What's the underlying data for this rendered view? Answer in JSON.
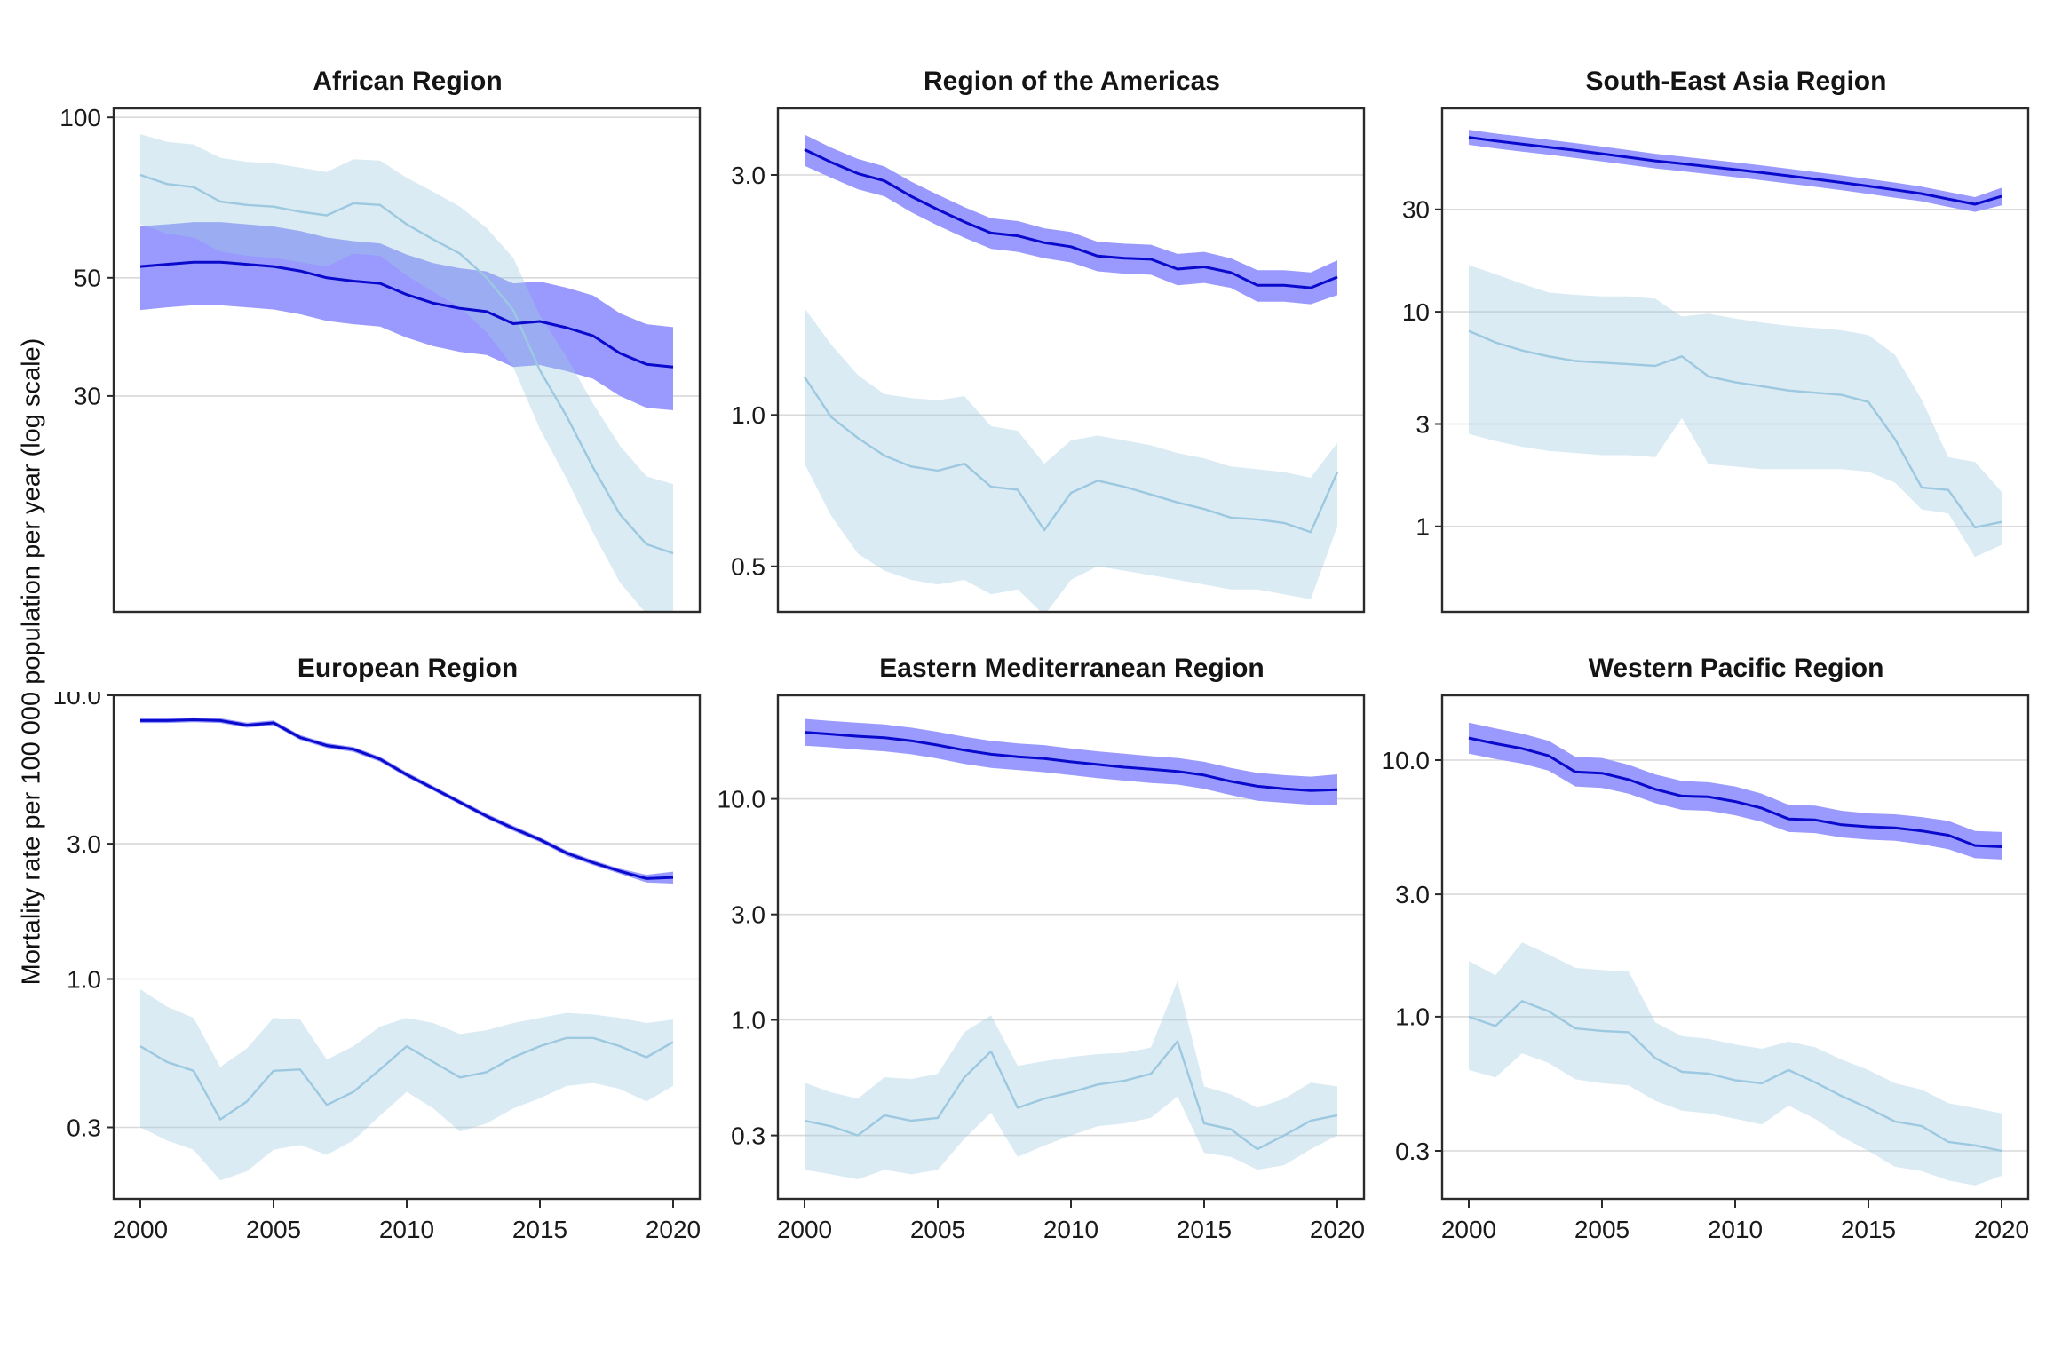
{
  "figure": {
    "y_axis_label": "Mortality rate per 100 000 population per year (log scale)",
    "x_range": {
      "start": 2000,
      "end": 2020
    },
    "x_tick_labels": [
      "2000",
      "2005",
      "2010",
      "2015",
      "2020"
    ],
    "x_tick_years": [
      2000,
      2005,
      2010,
      2015,
      2020
    ]
  },
  "colors": {
    "dark_line": "#0A0ACD",
    "dark_band": "#9999FE",
    "light_line": "#9CC8E0",
    "light_band": "rgba(158,202,225,0.38)",
    "gridline": "#D9D9D9",
    "panel_border": "#2B2B2B",
    "tick_text": "#1A1A1A",
    "title_text": "#141414",
    "background": "#FFFFFF"
  },
  "chart_data": [
    {
      "type": "line",
      "title": "African Region",
      "ylim": [
        11.8,
        104
      ],
      "yticks": [
        {
          "value": 100,
          "label": "100"
        },
        {
          "value": 50,
          "label": "50"
        },
        {
          "value": 30,
          "label": "30"
        }
      ],
      "show_x_axis": false,
      "series": [
        {
          "name": "dark-blue-line",
          "values": [
            52.5,
            53,
            53.5,
            53.5,
            53,
            52.5,
            51.5,
            50,
            49.3,
            48.8,
            46.5,
            44.8,
            43.8,
            43.2,
            41.0,
            41.4,
            40.3,
            38.9,
            36.1,
            34.4,
            34.0
          ],
          "lower": [
            43.5,
            44,
            44.4,
            44.4,
            44,
            43.6,
            42.7,
            41.5,
            40.9,
            40.5,
            38.6,
            37.2,
            36.3,
            35.8,
            34.0,
            34.3,
            33.4,
            32.3,
            30.0,
            28.5,
            28.2
          ],
          "upper": [
            62.5,
            63,
            63.6,
            63.6,
            63,
            62.4,
            61.2,
            59.5,
            58.6,
            58.0,
            55.3,
            53.3,
            52.1,
            51.4,
            48.8,
            49.2,
            47.9,
            46.3,
            42.9,
            40.9,
            40.4
          ]
        },
        {
          "name": "light-blue-line",
          "values": [
            78,
            75,
            74,
            69.5,
            68.5,
            68,
            66.5,
            65.5,
            69,
            68.5,
            63,
            59,
            55.5,
            50,
            43.5,
            33.5,
            27.5,
            22,
            18,
            15.8,
            15.2
          ],
          "lower": [
            63,
            60.5,
            59.5,
            56,
            55,
            54.5,
            53.5,
            52.5,
            55.5,
            55,
            50.5,
            47,
            44,
            39.5,
            34,
            26,
            21,
            16.6,
            13.4,
            11.7,
            11.2
          ],
          "upper": [
            93,
            90,
            89,
            84,
            82.5,
            82,
            80.5,
            79,
            83.5,
            83,
            77,
            72.5,
            68,
            62,
            54.5,
            42.5,
            35.5,
            29,
            24.2,
            21.2,
            20.5
          ]
        }
      ]
    },
    {
      "type": "line",
      "title": "Region of the Americas",
      "ylim": [
        0.406,
        4.07
      ],
      "yticks": [
        {
          "value": 3.0,
          "label": "3.0"
        },
        {
          "value": 1.0,
          "label": "1.0"
        },
        {
          "value": 0.5,
          "label": "0.5"
        }
      ],
      "show_x_axis": false,
      "series": [
        {
          "name": "dark-blue-line",
          "values": [
            3.37,
            3.18,
            3.02,
            2.92,
            2.72,
            2.56,
            2.42,
            2.3,
            2.27,
            2.2,
            2.16,
            2.07,
            2.05,
            2.04,
            1.95,
            1.97,
            1.92,
            1.81,
            1.81,
            1.79,
            1.88
          ],
          "lower": [
            3.13,
            2.96,
            2.81,
            2.72,
            2.53,
            2.38,
            2.25,
            2.14,
            2.11,
            2.05,
            2.01,
            1.93,
            1.91,
            1.9,
            1.81,
            1.83,
            1.79,
            1.68,
            1.68,
            1.66,
            1.73
          ],
          "upper": [
            3.61,
            3.4,
            3.23,
            3.12,
            2.91,
            2.74,
            2.59,
            2.46,
            2.43,
            2.35,
            2.31,
            2.21,
            2.19,
            2.18,
            2.09,
            2.11,
            2.05,
            1.94,
            1.94,
            1.92,
            2.03
          ]
        },
        {
          "name": "light-blue-line",
          "values": [
            1.19,
            0.99,
            0.9,
            0.83,
            0.79,
            0.775,
            0.8,
            0.72,
            0.71,
            0.59,
            0.7,
            0.74,
            0.72,
            0.695,
            0.67,
            0.65,
            0.625,
            0.62,
            0.61,
            0.585,
            0.77
          ],
          "lower": [
            0.8,
            0.63,
            0.53,
            0.49,
            0.47,
            0.46,
            0.47,
            0.44,
            0.45,
            0.4,
            0.47,
            0.5,
            0.49,
            0.48,
            0.47,
            0.46,
            0.45,
            0.45,
            0.44,
            0.43,
            0.6
          ],
          "upper": [
            1.63,
            1.38,
            1.2,
            1.1,
            1.08,
            1.07,
            1.09,
            0.95,
            0.93,
            0.8,
            0.89,
            0.91,
            0.89,
            0.87,
            0.84,
            0.82,
            0.79,
            0.78,
            0.77,
            0.75,
            0.88
          ]
        }
      ]
    },
    {
      "type": "line",
      "title": "South-East Asia Region",
      "ylim": [
        0.4,
        88.7
      ],
      "yticks": [
        {
          "value": 30,
          "label": "30"
        },
        {
          "value": 10,
          "label": "10"
        },
        {
          "value": 3,
          "label": "3"
        },
        {
          "value": 1,
          "label": "1"
        }
      ],
      "show_x_axis": false,
      "series": [
        {
          "name": "dark-blue-line",
          "values": [
            65,
            62.5,
            60.5,
            58.5,
            56.5,
            54.5,
            52.5,
            50.5,
            49,
            47.5,
            46,
            44.5,
            43,
            41.5,
            40,
            38.5,
            37,
            35.5,
            33.5,
            31.7,
            34.5
          ],
          "lower": [
            60,
            57.7,
            55.8,
            54,
            52.1,
            50.2,
            48.4,
            46.6,
            45.2,
            43.8,
            42.4,
            41,
            39.6,
            38.2,
            36.8,
            35.4,
            34,
            32.7,
            30.8,
            29.2,
            31.3
          ],
          "upper": [
            70.5,
            67.7,
            65.5,
            63.3,
            61.1,
            58.9,
            56.7,
            54.5,
            52.9,
            51.3,
            49.7,
            48.1,
            46.4,
            44.8,
            43.2,
            41.6,
            40,
            38.3,
            36.2,
            34.2,
            37.8
          ]
        },
        {
          "name": "light-blue-line",
          "values": [
            8.15,
            7.2,
            6.6,
            6.2,
            5.9,
            5.8,
            5.7,
            5.6,
            6.2,
            5.0,
            4.7,
            4.5,
            4.3,
            4.2,
            4.1,
            3.8,
            2.55,
            1.52,
            1.48,
            0.99,
            1.05
          ],
          "lower": [
            2.7,
            2.5,
            2.35,
            2.25,
            2.2,
            2.15,
            2.15,
            2.1,
            3.2,
            1.95,
            1.9,
            1.85,
            1.85,
            1.85,
            1.85,
            1.8,
            1.6,
            1.2,
            1.15,
            0.72,
            0.82
          ],
          "upper": [
            16.5,
            15,
            13.5,
            12.3,
            12,
            11.8,
            11.8,
            11.5,
            9.5,
            9.8,
            9.3,
            8.9,
            8.6,
            8.4,
            8.2,
            7.8,
            6.3,
            3.9,
            2.1,
            2.0,
            1.45
          ]
        }
      ]
    },
    {
      "type": "line",
      "title": "European Region",
      "ylim": [
        0.168,
        10.0
      ],
      "yticks": [
        {
          "value": 10.0,
          "label": "10.0"
        },
        {
          "value": 3.0,
          "label": "3.0"
        },
        {
          "value": 1.0,
          "label": "1.0"
        },
        {
          "value": 0.3,
          "label": "0.3"
        }
      ],
      "show_x_axis": true,
      "series": [
        {
          "name": "dark-blue-line",
          "values": [
            8.15,
            8.15,
            8.2,
            8.15,
            7.85,
            8.0,
            7.1,
            6.65,
            6.45,
            5.95,
            5.25,
            4.7,
            4.2,
            3.75,
            3.4,
            3.1,
            2.78,
            2.57,
            2.4,
            2.26,
            2.28
          ],
          "lower": [
            7.99,
            7.99,
            8.04,
            7.99,
            7.69,
            7.84,
            6.96,
            6.52,
            6.32,
            5.83,
            5.15,
            4.61,
            4.12,
            3.68,
            3.33,
            3.04,
            2.72,
            2.52,
            2.35,
            2.19,
            2.17
          ],
          "upper": [
            8.31,
            8.31,
            8.36,
            8.31,
            8.01,
            8.16,
            7.24,
            6.78,
            6.58,
            6.07,
            5.36,
            4.79,
            4.28,
            3.83,
            3.47,
            3.16,
            2.84,
            2.62,
            2.45,
            2.33,
            2.39
          ]
        },
        {
          "name": "light-blue-line",
          "values": [
            0.58,
            0.51,
            0.475,
            0.32,
            0.37,
            0.475,
            0.48,
            0.36,
            0.4,
            0.48,
            0.58,
            0.51,
            0.45,
            0.47,
            0.53,
            0.58,
            0.62,
            0.62,
            0.58,
            0.53,
            0.6
          ],
          "lower": [
            0.3,
            0.27,
            0.25,
            0.195,
            0.21,
            0.25,
            0.26,
            0.24,
            0.27,
            0.33,
            0.4,
            0.35,
            0.29,
            0.31,
            0.35,
            0.38,
            0.42,
            0.43,
            0.41,
            0.37,
            0.42
          ],
          "upper": [
            0.92,
            0.8,
            0.73,
            0.49,
            0.57,
            0.73,
            0.72,
            0.52,
            0.58,
            0.68,
            0.73,
            0.7,
            0.64,
            0.66,
            0.7,
            0.73,
            0.76,
            0.75,
            0.73,
            0.7,
            0.72
          ]
        }
      ]
    },
    {
      "type": "line",
      "title": "Eastern Mediterranean Region",
      "ylim": [
        0.155,
        29.4
      ],
      "yticks": [
        {
          "value": 10.0,
          "label": "10.0"
        },
        {
          "value": 3.0,
          "label": "3.0"
        },
        {
          "value": 1.0,
          "label": "1.0"
        },
        {
          "value": 0.3,
          "label": "0.3"
        }
      ],
      "show_x_axis": true,
      "series": [
        {
          "name": "dark-blue-line",
          "values": [
            20,
            19.6,
            19.2,
            18.9,
            18.3,
            17.5,
            16.6,
            15.9,
            15.5,
            15.2,
            14.7,
            14.3,
            13.9,
            13.6,
            13.3,
            12.8,
            12.0,
            11.4,
            11.1,
            10.9,
            11.0
          ],
          "lower": [
            17.4,
            17.1,
            16.7,
            16.4,
            15.9,
            15.2,
            14.4,
            13.8,
            13.5,
            13.2,
            12.8,
            12.4,
            12.1,
            11.8,
            11.6,
            11.1,
            10.4,
            9.8,
            9.6,
            9.4,
            9.4
          ],
          "upper": [
            23.0,
            22.5,
            22.1,
            21.7,
            21.0,
            20.1,
            19.1,
            18.3,
            17.8,
            17.5,
            16.9,
            16.4,
            16.0,
            15.6,
            15.3,
            14.7,
            13.8,
            13.1,
            12.8,
            12.6,
            12.9
          ]
        },
        {
          "name": "light-blue-line",
          "values": [
            0.35,
            0.33,
            0.3,
            0.37,
            0.35,
            0.36,
            0.55,
            0.72,
            0.4,
            0.44,
            0.47,
            0.51,
            0.53,
            0.57,
            0.8,
            0.34,
            0.32,
            0.26,
            0.3,
            0.35,
            0.37
          ],
          "lower": [
            0.21,
            0.2,
            0.19,
            0.21,
            0.2,
            0.21,
            0.29,
            0.38,
            0.24,
            0.27,
            0.3,
            0.33,
            0.34,
            0.36,
            0.45,
            0.25,
            0.24,
            0.21,
            0.22,
            0.26,
            0.3
          ],
          "upper": [
            0.52,
            0.47,
            0.44,
            0.55,
            0.54,
            0.57,
            0.88,
            1.05,
            0.62,
            0.65,
            0.68,
            0.7,
            0.71,
            0.75,
            1.5,
            0.5,
            0.46,
            0.4,
            0.44,
            0.52,
            0.5
          ]
        }
      ]
    },
    {
      "type": "line",
      "title": "Western Pacific Region",
      "ylim": [
        0.195,
        17.9
      ],
      "yticks": [
        {
          "value": 10.0,
          "label": "10.0"
        },
        {
          "value": 3.0,
          "label": "3.0"
        },
        {
          "value": 1.0,
          "label": "1.0"
        },
        {
          "value": 0.3,
          "label": "0.3"
        }
      ],
      "show_x_axis": true,
      "series": [
        {
          "name": "dark-blue-line",
          "values": [
            12.2,
            11.6,
            11.1,
            10.4,
            9.0,
            8.9,
            8.4,
            7.7,
            7.25,
            7.2,
            6.9,
            6.5,
            5.9,
            5.85,
            5.6,
            5.5,
            5.45,
            5.3,
            5.1,
            4.65,
            4.6
          ],
          "lower": [
            10.6,
            10.1,
            9.7,
            9.1,
            7.9,
            7.8,
            7.4,
            6.8,
            6.4,
            6.35,
            6.1,
            5.75,
            5.25,
            5.2,
            5.0,
            4.9,
            4.85,
            4.7,
            4.5,
            4.15,
            4.1
          ],
          "upper": [
            14.0,
            13.3,
            12.7,
            11.9,
            10.3,
            10.2,
            9.6,
            8.8,
            8.3,
            8.2,
            7.9,
            7.4,
            6.7,
            6.65,
            6.35,
            6.2,
            6.15,
            6.0,
            5.8,
            5.3,
            5.25
          ]
        },
        {
          "name": "light-blue-line",
          "values": [
            1.0,
            0.92,
            1.15,
            1.05,
            0.9,
            0.88,
            0.87,
            0.69,
            0.61,
            0.6,
            0.565,
            0.55,
            0.62,
            0.555,
            0.49,
            0.44,
            0.39,
            0.375,
            0.325,
            0.315,
            0.3
          ],
          "lower": [
            0.62,
            0.58,
            0.72,
            0.66,
            0.57,
            0.55,
            0.54,
            0.47,
            0.43,
            0.42,
            0.4,
            0.38,
            0.45,
            0.4,
            0.34,
            0.3,
            0.26,
            0.25,
            0.23,
            0.22,
            0.24
          ],
          "upper": [
            1.65,
            1.45,
            1.95,
            1.75,
            1.55,
            1.52,
            1.5,
            0.95,
            0.84,
            0.82,
            0.78,
            0.75,
            0.8,
            0.76,
            0.68,
            0.62,
            0.55,
            0.52,
            0.46,
            0.44,
            0.42
          ]
        }
      ]
    }
  ]
}
